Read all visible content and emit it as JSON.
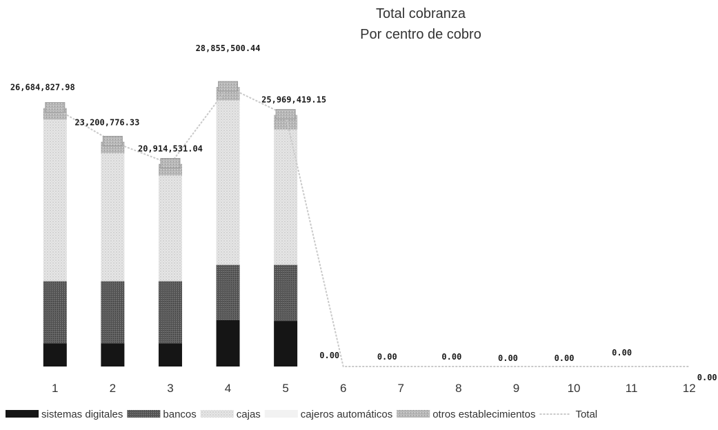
{
  "chart_data": {
    "type": "bar",
    "stacked": true,
    "title": [
      "Total cobranza",
      "Por centro de cobro"
    ],
    "categories": [
      "1",
      "2",
      "3",
      "4",
      "5",
      "6",
      "7",
      "8",
      "9",
      "10",
      "11",
      "12"
    ],
    "ylim": [
      0,
      30000000
    ],
    "grid": false,
    "legend_position": "bottom",
    "series": [
      {
        "name": "sistemas digitales",
        "kind": "bar",
        "color": "#1a1a1a",
        "values": [
          2400000,
          2400000,
          2400000,
          4800000,
          4700000,
          0,
          0,
          0,
          0,
          0,
          0,
          0
        ]
      },
      {
        "name": "bancos",
        "kind": "bar",
        "color": "#555555",
        "values": [
          6400000,
          6400000,
          6400000,
          5700000,
          5800000,
          0,
          0,
          0,
          0,
          0,
          0,
          0
        ]
      },
      {
        "name": "cajas",
        "kind": "bar",
        "color": "#dadada",
        "values": [
          16684827.98,
          13200776.33,
          10914531.04,
          16955500.44,
          13969419.15,
          0,
          0,
          0,
          0,
          0,
          0,
          0
        ]
      },
      {
        "name": "cajeros automáticos",
        "kind": "bar",
        "color": "#f0f0f0",
        "values": [
          0,
          0,
          0,
          0,
          0,
          0,
          0,
          0,
          0,
          0,
          0,
          0
        ]
      },
      {
        "name": "otros establecimientos",
        "kind": "bar",
        "color": "#a8a8a8",
        "values": [
          1200000,
          1200000,
          1200000,
          1400000,
          1500000,
          0,
          0,
          0,
          0,
          0,
          0,
          0
        ]
      },
      {
        "name": "Total",
        "kind": "line",
        "color": "#cfcfcf",
        "values": [
          26684827.98,
          23200776.33,
          20914531.04,
          28855500.44,
          25969419.15,
          0,
          0,
          0,
          0,
          0,
          0,
          0
        ]
      }
    ],
    "data_labels": [
      "26,684,827.98",
      "23,200,776.33",
      "20,914,531.04",
      "28,855,500.44",
      "25,969,419.15",
      "0.00",
      "0.00",
      "0.00",
      "0.00",
      "0.00",
      "0.00",
      "0.00"
    ]
  }
}
